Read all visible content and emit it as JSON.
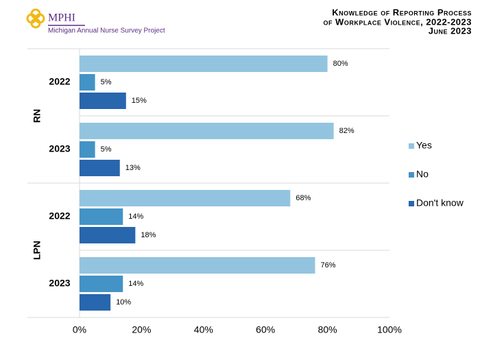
{
  "header": {
    "logo": "MPHI",
    "org": "Michigan Annual Nurse Survey Project"
  },
  "chart_data": {
    "type": "hbar",
    "title": [
      "Knowledge of Reporting Process",
      "of Workplace Violence, 2022-2023"
    ],
    "subtitle": "June 2023",
    "groups": [
      {
        "name": "RN",
        "size": 2
      },
      {
        "name": "LPN",
        "size": 2
      }
    ],
    "categories": [
      "2022",
      "2023",
      "2022",
      "2023"
    ],
    "series": [
      {
        "name": "Yes",
        "color": "#93c4df",
        "values": [
          80,
          82,
          68,
          76
        ],
        "value_labels": [
          "80%",
          "82%",
          "68%",
          "76%"
        ]
      },
      {
        "name": "No",
        "color": "#4393c6",
        "values": [
          5,
          5,
          14,
          14
        ],
        "value_labels": [
          "5%",
          "5%",
          "14%",
          "14%"
        ]
      },
      {
        "name": "Don't know",
        "color": "#2866ad",
        "values": [
          15,
          13,
          18,
          10
        ],
        "value_labels": [
          "15%",
          "13%",
          "18%",
          "10%"
        ]
      }
    ],
    "xlim": [
      0,
      100
    ],
    "xticks": [
      {
        "value": 0,
        "label": "0%"
      },
      {
        "value": 20,
        "label": "20%"
      },
      {
        "value": 40,
        "label": "40%"
      },
      {
        "value": 60,
        "label": "60%"
      },
      {
        "value": 80,
        "label": "80%"
      },
      {
        "value": 100,
        "label": "100%"
      }
    ],
    "grid": false,
    "legend": "right"
  }
}
